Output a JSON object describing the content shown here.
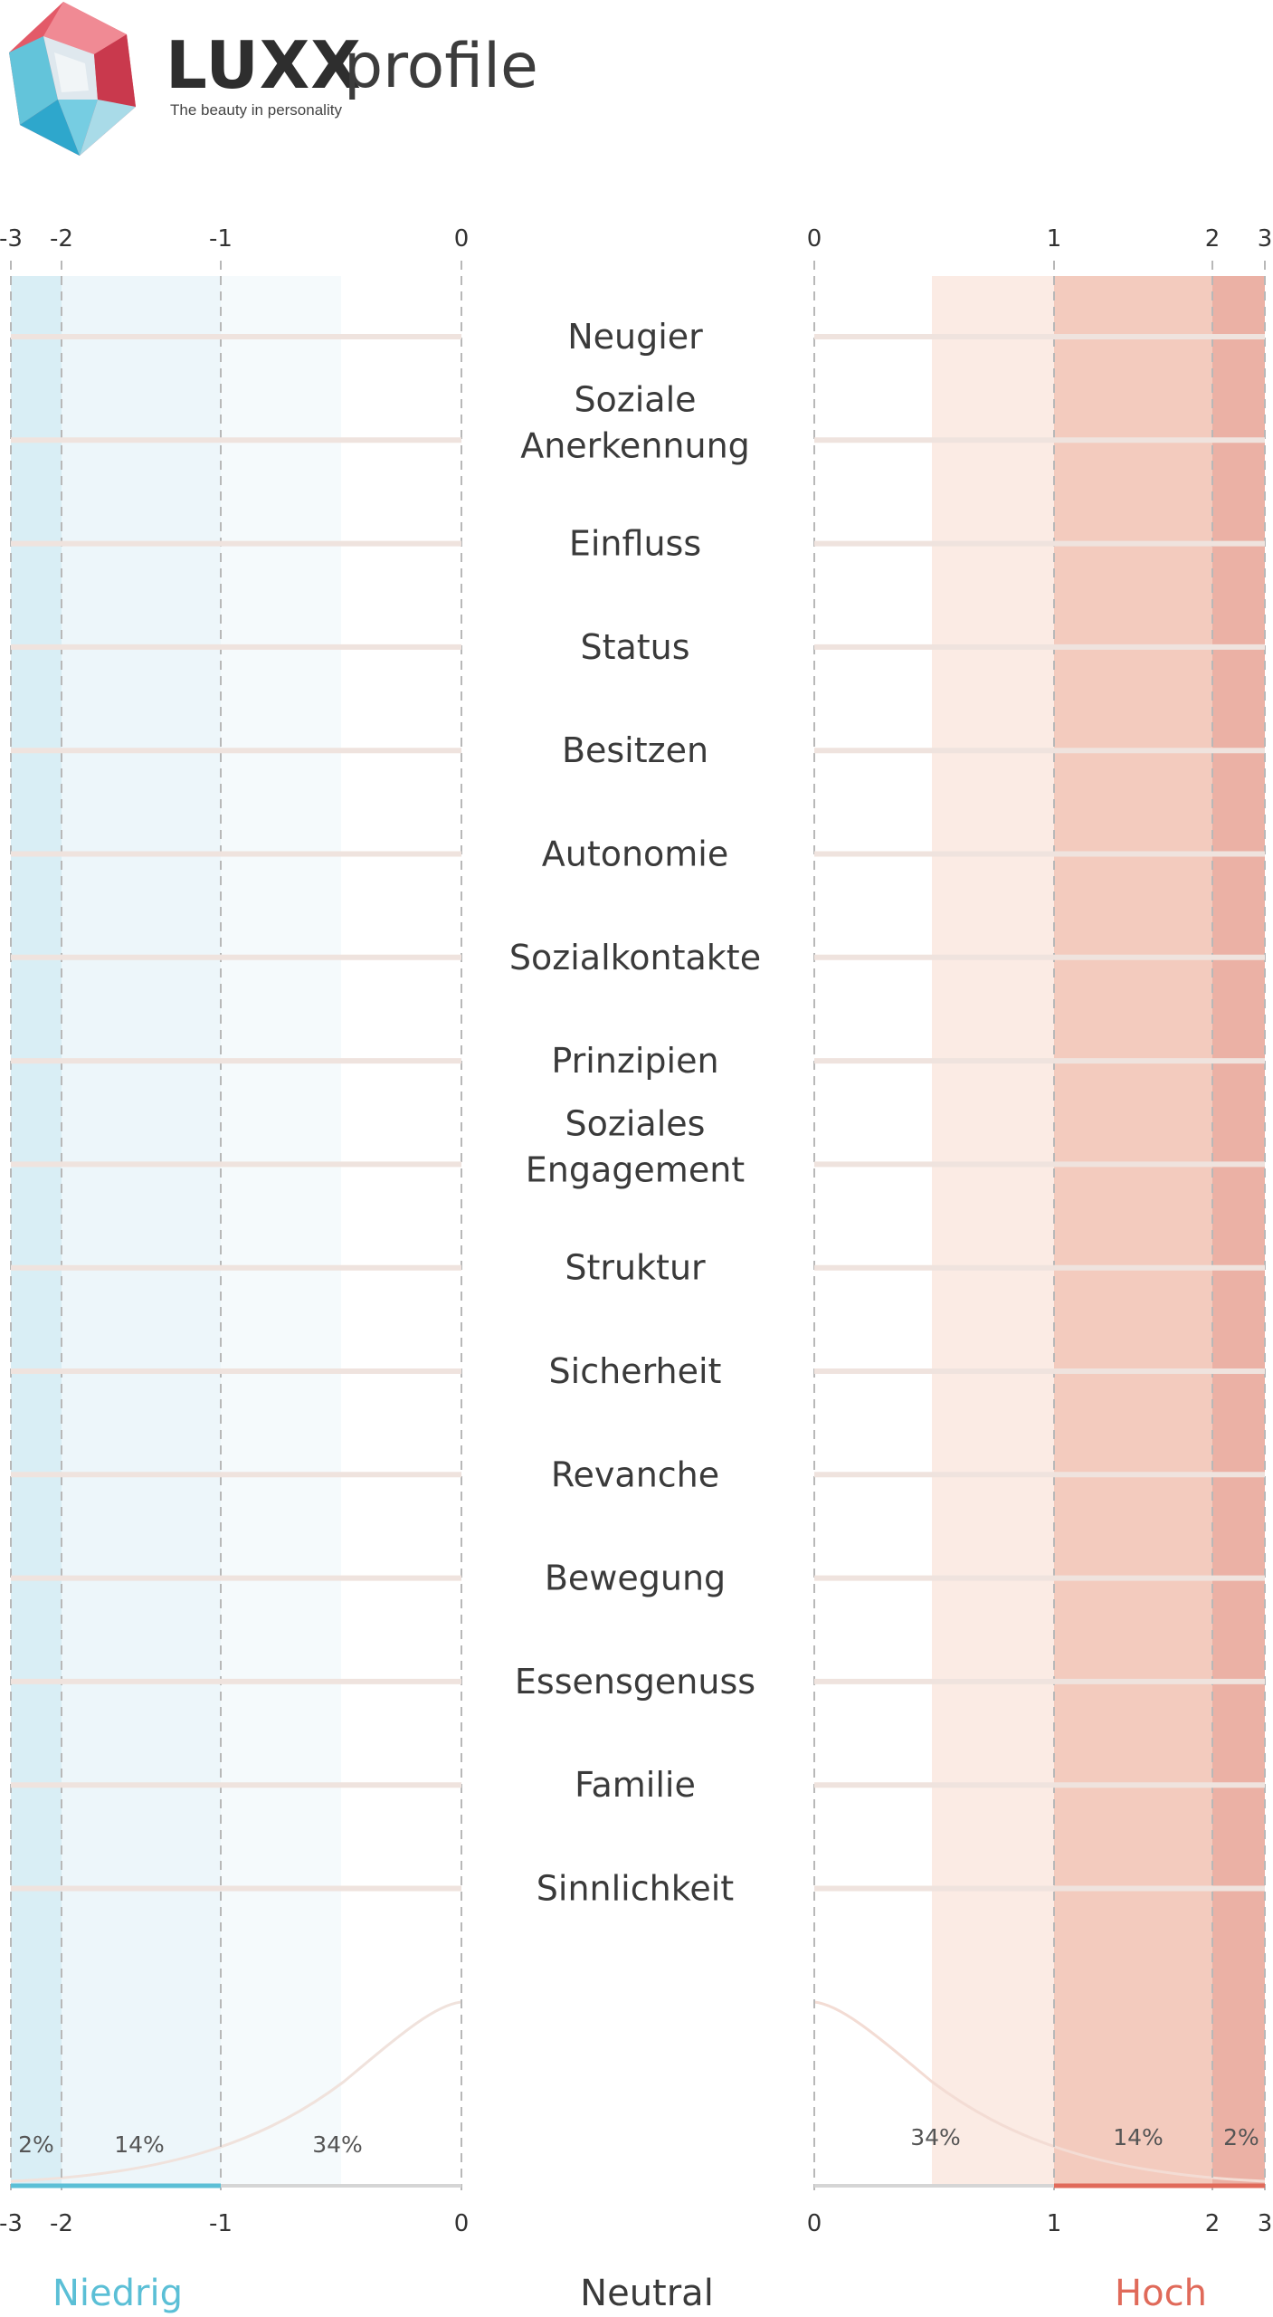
{
  "brand": {
    "name_bold": "LUXX",
    "name_light": "profile",
    "tagline": "The beauty in personality"
  },
  "colors": {
    "low": "#5bbfd6",
    "high": "#e06a5a",
    "text": "#3a3a3a"
  },
  "chart_data": {
    "type": "bar",
    "orientation": "horizontal-diverging",
    "categories": [
      "Neugier",
      "Soziale\nAnerkennung",
      "Einfluss",
      "Status",
      "Besitzen",
      "Autonomie",
      "Sozialkontakte",
      "Prinzipien",
      "Soziales\nEngagement",
      "Struktur",
      "Sicherheit",
      "Revanche",
      "Bewegung",
      "Essensgenuss",
      "Familie",
      "Sinnlichkeit"
    ],
    "left_ticks": [
      "-3",
      "-2",
      "-1",
      "0"
    ],
    "right_ticks": [
      "0",
      "1",
      "2",
      "3"
    ],
    "xlim_left": [
      -3,
      0
    ],
    "xlim_right": [
      0,
      3
    ],
    "bands": [
      {
        "side": "left",
        "from": -3,
        "to": -2,
        "label": "2%"
      },
      {
        "side": "left",
        "from": -2,
        "to": -1,
        "label": "14%"
      },
      {
        "side": "left",
        "from": -1,
        "to": -0.5,
        "label": "34%"
      },
      {
        "side": "right",
        "from": 0.5,
        "to": 1,
        "label": "34%"
      },
      {
        "side": "right",
        "from": 1,
        "to": 2,
        "label": "14%"
      },
      {
        "side": "right",
        "from": 2,
        "to": 3,
        "label": "2%"
      }
    ],
    "footer_labels": {
      "low": "Niedrig",
      "neutral": "Neutral",
      "high": "Hoch"
    },
    "grid": true
  }
}
